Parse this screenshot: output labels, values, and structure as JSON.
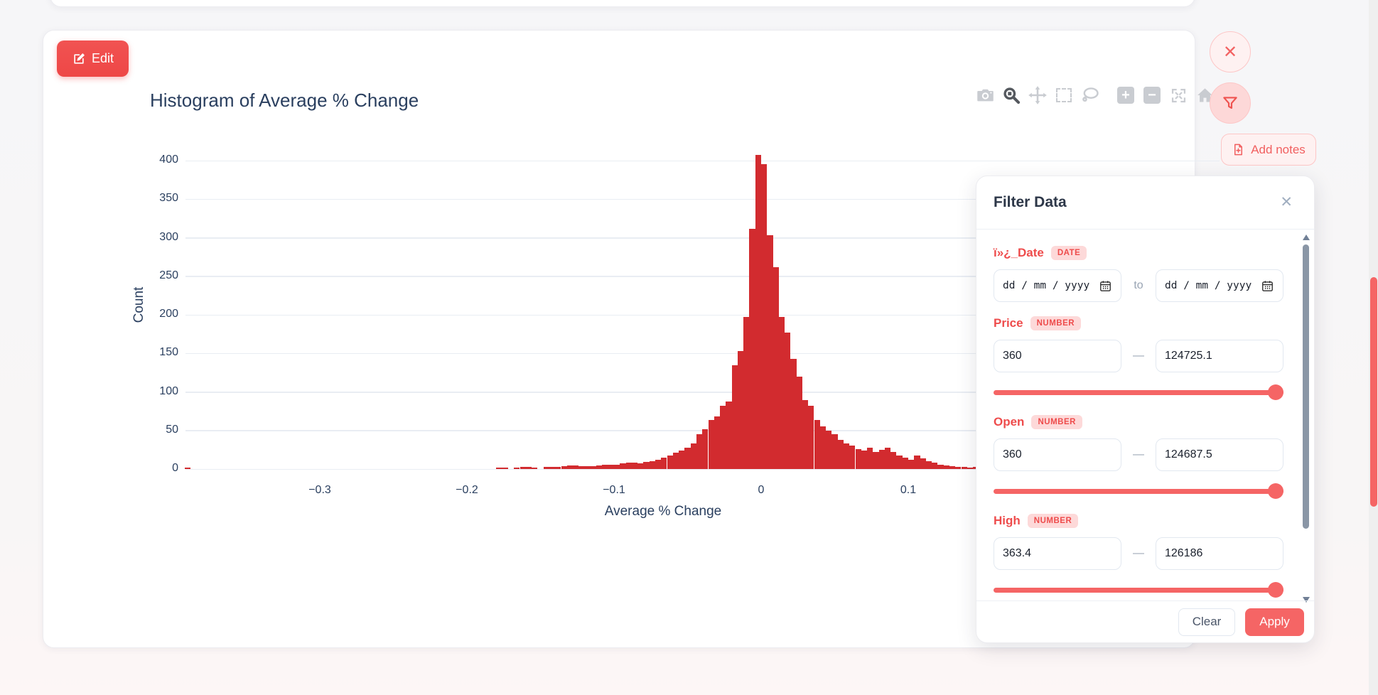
{
  "colors": {
    "accent": "#f56565",
    "accent_dark": "#ee4c4c",
    "bar_color": "#d22b2f",
    "axis_text": "#2a3f5f",
    "badge_bg": "#fdd9d9",
    "modebar_inactive": "#c9ccd1",
    "modebar_active": "#55595f"
  },
  "chart_card": {
    "edit_button": {
      "label": "Edit",
      "icon": "pencil-square-icon"
    },
    "title": "Histogram of Average % Change",
    "modebar": [
      {
        "name": "camera-icon"
      },
      {
        "name": "zoom-icon",
        "active": true
      },
      {
        "name": "pan-icon"
      },
      {
        "name": "box-select-icon"
      },
      {
        "name": "lasso-select-icon"
      },
      {
        "name": "zoom-in-icon",
        "group_start": true
      },
      {
        "name": "zoom-out-icon"
      },
      {
        "name": "autoscale-icon"
      },
      {
        "name": "reset-home-icon"
      }
    ]
  },
  "chart_data": {
    "type": "bar",
    "subtype": "histogram",
    "title": "Histogram of Average % Change",
    "xlabel": "Average % Change",
    "ylabel": "Count",
    "bar_color": "#d22b2f",
    "grid": true,
    "legend": false,
    "ylim": [
      0,
      420
    ],
    "xlim": [
      -0.392,
      0.18
    ],
    "bin_width": 0.004,
    "y_ticks": [
      0,
      50,
      100,
      150,
      200,
      250,
      300,
      350,
      400
    ],
    "x_ticks": [
      {
        "v": -0.3,
        "label": "−0.3"
      },
      {
        "v": -0.2,
        "label": "−0.2"
      },
      {
        "v": -0.1,
        "label": "−0.1"
      },
      {
        "v": 0,
        "label": "0"
      },
      {
        "v": 0.1,
        "label": "0.1"
      }
    ],
    "bin_centers": [
      -0.39,
      -0.178,
      -0.174,
      -0.17,
      -0.166,
      -0.162,
      -0.158,
      -0.154,
      -0.15,
      -0.146,
      -0.142,
      -0.138,
      -0.134,
      -0.13,
      -0.126,
      -0.122,
      -0.118,
      -0.114,
      -0.11,
      -0.106,
      -0.102,
      -0.098,
      -0.094,
      -0.09,
      -0.086,
      -0.082,
      -0.078,
      -0.074,
      -0.07,
      -0.066,
      -0.062,
      -0.058,
      -0.054,
      -0.05,
      -0.046,
      -0.042,
      -0.038,
      -0.034,
      -0.03,
      -0.026,
      -0.022,
      -0.018,
      -0.014,
      -0.01,
      -0.006,
      -0.002,
      0.002,
      0.006,
      0.01,
      0.014,
      0.018,
      0.022,
      0.026,
      0.03,
      0.034,
      0.038,
      0.042,
      0.046,
      0.05,
      0.054,
      0.058,
      0.062,
      0.066,
      0.07,
      0.074,
      0.078,
      0.082,
      0.086,
      0.09,
      0.094,
      0.098,
      0.102,
      0.106,
      0.11,
      0.114,
      0.118,
      0.122,
      0.126,
      0.13,
      0.134,
      0.138,
      0.142,
      0.146,
      0.15,
      0.154,
      0.158,
      0.162,
      0.166,
      0.17,
      0.174
    ],
    "counts": [
      2,
      2,
      2,
      0,
      2,
      3,
      3,
      2,
      0,
      3,
      3,
      3,
      4,
      5,
      5,
      4,
      4,
      4,
      5,
      6,
      6,
      6,
      7,
      8,
      8,
      7,
      9,
      10,
      12,
      15,
      18,
      21,
      24,
      28,
      33,
      45,
      52,
      64,
      68,
      82,
      88,
      135,
      153,
      197,
      312,
      407,
      395,
      303,
      262,
      197,
      177,
      143,
      120,
      89,
      82,
      64,
      55,
      50,
      45,
      38,
      33,
      30,
      26,
      24,
      28,
      22,
      25,
      28,
      22,
      18,
      15,
      12,
      18,
      14,
      10,
      8,
      6,
      5,
      4,
      3,
      3,
      2,
      3,
      0,
      2,
      2,
      0,
      3,
      2,
      2
    ]
  },
  "side_buttons": {
    "close": {
      "icon": "close-icon"
    },
    "filter": {
      "icon": "funnel-icon"
    },
    "add_notes": {
      "label": "Add notes",
      "icon": "file-plus-icon"
    }
  },
  "filter_panel": {
    "title": "Filter Data",
    "close_icon": "close-icon",
    "fields": [
      {
        "label": "ï»¿_Date",
        "badge": "DATE",
        "kind": "date",
        "min": "dd / mm / yyyy",
        "max": "dd / mm / yyyy",
        "separator": "to"
      },
      {
        "label": "Price",
        "badge": "NUMBER",
        "kind": "number",
        "min": "360",
        "max": "124725.1",
        "separator": "—",
        "slider_percent": 100
      },
      {
        "label": "Open",
        "badge": "NUMBER",
        "kind": "number",
        "min": "360",
        "max": "124687.5",
        "separator": "—",
        "slider_percent": 100
      },
      {
        "label": "High",
        "badge": "NUMBER",
        "kind": "number",
        "min": "363.4",
        "max": "126186",
        "separator": "—",
        "slider_percent": 100
      }
    ],
    "clear_label": "Clear",
    "apply_label": "Apply"
  }
}
